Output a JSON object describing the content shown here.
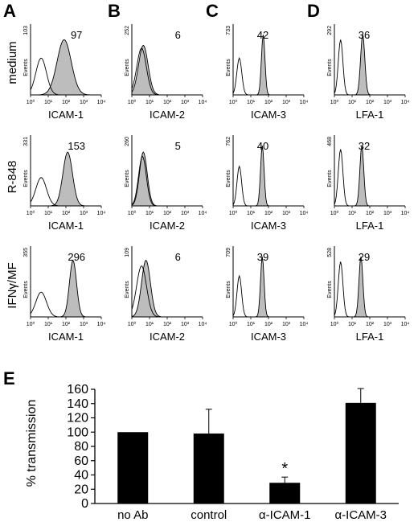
{
  "panel_letters": [
    "A",
    "B",
    "C",
    "D",
    "E"
  ],
  "row_labels": [
    "medium",
    "R-848",
    "IFNγ/MF"
  ],
  "markers": [
    "ICAM-1",
    "ICAM-2",
    "ICAM-3",
    "LFA-1"
  ],
  "events_label": "Events",
  "x_ticks": [
    "10⁰",
    "10¹",
    "10²",
    "10³",
    "10⁴"
  ],
  "chart_data": [
    {
      "type": "histogram",
      "description_rows": [
        "medium",
        "R-848",
        "IFNγ/MF"
      ],
      "description_cols": [
        "ICAM-1",
        "ICAM-2",
        "ICAM-3",
        "LFA-1"
      ],
      "x_scale": "log",
      "xlim": [
        1,
        10000
      ],
      "panels": [
        {
          "row": 0,
          "col": 0,
          "marker": "ICAM-1",
          "ymax": "103",
          "value": "97",
          "ctrl_peak": 0.6,
          "ctrl_h": 0.52,
          "ctrl_w": 0.3,
          "stain_peak": 1.9,
          "stain_h": 0.78,
          "stain_w": 0.4
        },
        {
          "row": 0,
          "col": 1,
          "marker": "ICAM-2",
          "ymax": "252",
          "value": "6",
          "ctrl_peak": 0.55,
          "ctrl_h": 0.66,
          "ctrl_w": 0.27,
          "stain_peak": 0.65,
          "stain_h": 0.7,
          "stain_w": 0.27
        },
        {
          "row": 0,
          "col": 2,
          "marker": "ICAM-3",
          "ymax": "733",
          "value": "42",
          "ctrl_peak": 0.35,
          "ctrl_h": 0.52,
          "ctrl_w": 0.14,
          "stain_peak": 1.7,
          "stain_h": 0.85,
          "stain_w": 0.1
        },
        {
          "row": 0,
          "col": 3,
          "marker": "LFA-1",
          "ymax": "292",
          "value": "36",
          "ctrl_peak": 0.35,
          "ctrl_h": 0.78,
          "ctrl_w": 0.13,
          "stain_peak": 1.6,
          "stain_h": 0.85,
          "stain_w": 0.12
        },
        {
          "row": 1,
          "col": 0,
          "marker": "ICAM-1",
          "ymax": "331",
          "value": "153",
          "ctrl_peak": 0.6,
          "ctrl_h": 0.4,
          "ctrl_w": 0.3,
          "stain_peak": 2.1,
          "stain_h": 0.76,
          "stain_w": 0.27
        },
        {
          "row": 1,
          "col": 1,
          "marker": "ICAM-2",
          "ymax": "260",
          "value": "5",
          "ctrl_peak": 0.6,
          "ctrl_h": 0.7,
          "ctrl_w": 0.22,
          "stain_peak": 0.65,
          "stain_h": 0.76,
          "stain_w": 0.22
        },
        {
          "row": 1,
          "col": 2,
          "marker": "ICAM-3",
          "ymax": "762",
          "value": "40",
          "ctrl_peak": 0.35,
          "ctrl_h": 0.56,
          "ctrl_w": 0.13,
          "stain_peak": 1.65,
          "stain_h": 0.85,
          "stain_w": 0.1
        },
        {
          "row": 1,
          "col": 3,
          "marker": "LFA-1",
          "ymax": "468",
          "value": "32",
          "ctrl_peak": 0.35,
          "ctrl_h": 0.8,
          "ctrl_w": 0.13,
          "stain_peak": 1.55,
          "stain_h": 0.85,
          "stain_w": 0.11
        },
        {
          "row": 2,
          "col": 0,
          "marker": "ICAM-1",
          "ymax": "355",
          "value": "296",
          "ctrl_peak": 0.6,
          "ctrl_h": 0.35,
          "ctrl_w": 0.3,
          "stain_peak": 2.4,
          "stain_h": 0.8,
          "stain_w": 0.2
        },
        {
          "row": 2,
          "col": 1,
          "marker": "ICAM-2",
          "ymax": "109",
          "value": "6",
          "ctrl_peak": 0.55,
          "ctrl_h": 0.72,
          "ctrl_w": 0.28,
          "stain_peak": 0.8,
          "stain_h": 0.8,
          "stain_w": 0.25
        },
        {
          "row": 2,
          "col": 2,
          "marker": "ICAM-3",
          "ymax": "709",
          "value": "39",
          "ctrl_peak": 0.35,
          "ctrl_h": 0.58,
          "ctrl_w": 0.13,
          "stain_peak": 1.65,
          "stain_h": 0.85,
          "stain_w": 0.1
        },
        {
          "row": 2,
          "col": 3,
          "marker": "LFA-1",
          "ymax": "528",
          "value": "29",
          "ctrl_peak": 0.35,
          "ctrl_h": 0.78,
          "ctrl_w": 0.13,
          "stain_peak": 1.5,
          "stain_h": 0.85,
          "stain_w": 0.11
        }
      ]
    },
    {
      "type": "bar",
      "categories": [
        "no Ab",
        "control",
        "α-ICAM-1",
        "α-ICAM-3"
      ],
      "values": [
        100,
        98,
        29,
        141
      ],
      "errors": [
        0,
        34,
        8,
        20
      ],
      "significance": [
        "",
        "",
        "*",
        ""
      ],
      "ylabel": "% transmission",
      "xlabel": "",
      "ylim": [
        0,
        160
      ],
      "yticks": [
        0,
        20,
        40,
        60,
        80,
        100,
        120,
        140,
        160
      ],
      "bar_color": "#000000",
      "grid": false
    }
  ]
}
